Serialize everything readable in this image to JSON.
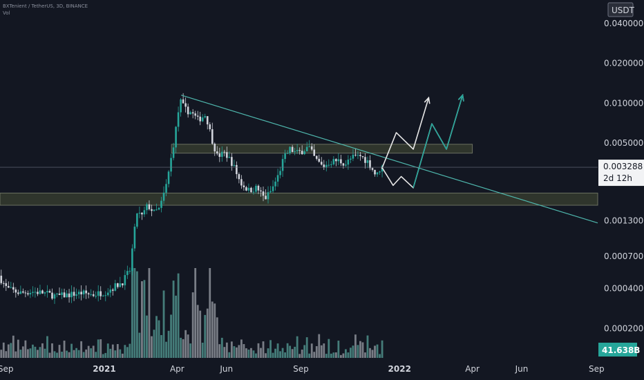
{
  "header": {
    "symbol_line": "BXTenient / TetherUS, 3D, BINANCE",
    "vol_label": "Vol"
  },
  "currency_badge": "USDT",
  "colors": {
    "background": "#131722",
    "up": "#26a69a",
    "down": "#d1d4dc",
    "vol_up": "#4f8f89",
    "vol_down": "#8c8f98",
    "trendline": "#4fb8ae",
    "zone": "#3a4030",
    "projection_white": "#e6e6e6",
    "projection_teal": "#26a69a"
  },
  "chart_data": {
    "type": "candlestick",
    "y_scale": "log",
    "ylim": [
      0.00012,
      0.06
    ],
    "y_ticks": [
      "0.040000",
      "0.020000",
      "0.010000",
      "0.005000",
      "0.001300",
      "0.000700",
      "0.000400",
      "0.000200"
    ],
    "y_tick_values": [
      0.04,
      0.02,
      0.01,
      0.005,
      0.0013,
      0.0007,
      0.0004,
      0.0002
    ],
    "x_ticks": [
      {
        "label": "Sep",
        "bold": false,
        "date": "2020-09-01"
      },
      {
        "label": "2021",
        "bold": true,
        "date": "2021-01-01"
      },
      {
        "label": "Apr",
        "bold": false,
        "date": "2021-04-01"
      },
      {
        "label": "Jun",
        "bold": false,
        "date": "2021-06-01"
      },
      {
        "label": "Sep",
        "bold": false,
        "date": "2021-09-01"
      },
      {
        "label": "2022",
        "bold": true,
        "date": "2022-01-01"
      },
      {
        "label": "Apr",
        "bold": false,
        "date": "2022-04-01"
      },
      {
        "label": "Jun",
        "bold": false,
        "date": "2022-06-01"
      },
      {
        "label": "Sep",
        "bold": false,
        "date": "2022-09-01"
      }
    ],
    "xlim": [
      "2020-08-25",
      "2022-09-03"
    ],
    "last_price": "0.003288",
    "countdown": "2d 12h",
    "volume_badge": "41.638B",
    "price_path": [
      [
        "2020-08-25",
        0.0005
      ],
      [
        "2020-09-04",
        0.0004
      ],
      [
        "2020-09-20",
        0.00037
      ],
      [
        "2020-10-05",
        0.00038
      ],
      [
        "2020-10-20",
        0.00037
      ],
      [
        "2020-11-05",
        0.00035
      ],
      [
        "2020-11-20",
        0.00036
      ],
      [
        "2020-12-05",
        0.00037
      ],
      [
        "2020-12-20",
        0.00036
      ],
      [
        "2021-01-05",
        0.00038
      ],
      [
        "2021-01-25",
        0.00045
      ],
      [
        "2021-02-03",
        0.00055
      ],
      [
        "2021-02-08",
        0.001
      ],
      [
        "2021-02-12",
        0.0015
      ],
      [
        "2021-02-18",
        0.0014
      ],
      [
        "2021-02-25",
        0.0017
      ],
      [
        "2021-03-05",
        0.0015
      ],
      [
        "2021-03-12",
        0.0016
      ],
      [
        "2021-03-20",
        0.0024
      ],
      [
        "2021-03-25",
        0.0035
      ],
      [
        "2021-03-31",
        0.0058
      ],
      [
        "2021-04-06",
        0.0105
      ],
      [
        "2021-04-12",
        0.009
      ],
      [
        "2021-04-20",
        0.0085
      ],
      [
        "2021-04-28",
        0.0075
      ],
      [
        "2021-05-08",
        0.0082
      ],
      [
        "2021-05-15",
        0.0055
      ],
      [
        "2021-05-22",
        0.004
      ],
      [
        "2021-06-01",
        0.0042
      ],
      [
        "2021-06-10",
        0.0035
      ],
      [
        "2021-06-20",
        0.0025
      ],
      [
        "2021-06-30",
        0.0022
      ],
      [
        "2021-07-10",
        0.0023
      ],
      [
        "2021-07-20",
        0.0019
      ],
      [
        "2021-07-28",
        0.0022
      ],
      [
        "2021-08-05",
        0.0028
      ],
      [
        "2021-08-12",
        0.0038
      ],
      [
        "2021-08-20",
        0.0045
      ],
      [
        "2021-08-28",
        0.0042
      ],
      [
        "2021-09-05",
        0.0044
      ],
      [
        "2021-09-12",
        0.0047
      ],
      [
        "2021-09-20",
        0.0038
      ],
      [
        "2021-09-30",
        0.0033
      ],
      [
        "2021-10-08",
        0.0036
      ],
      [
        "2021-10-18",
        0.0037
      ],
      [
        "2021-10-28",
        0.0035
      ],
      [
        "2021-11-05",
        0.0039
      ],
      [
        "2021-11-15",
        0.004
      ],
      [
        "2021-11-25",
        0.0036
      ],
      [
        "2021-12-05",
        0.0028
      ],
      [
        "2021-12-10",
        0.0033
      ]
    ],
    "trendline": {
      "from": [
        "2021-04-06",
        0.0115
      ],
      "to": [
        "2022-09-03",
        0.00125
      ]
    },
    "zones": [
      {
        "from": "2021-03-25",
        "to": "2022-04-01",
        "y_low": 0.0042,
        "y_high": 0.0049
      },
      {
        "from": "2020-08-25",
        "to": "2022-09-03",
        "y_low": 0.0017,
        "y_high": 0.0021
      }
    ],
    "projections": [
      {
        "color": "white",
        "points": [
          [
            "2021-12-10",
            0.0032
          ],
          [
            "2021-12-28",
            0.006
          ],
          [
            "2022-01-18",
            0.0045
          ],
          [
            "2022-02-06",
            0.011
          ]
        ]
      },
      {
        "color": "white",
        "points": [
          [
            "2021-12-10",
            0.0033
          ],
          [
            "2021-12-24",
            0.0024
          ],
          [
            "2022-01-03",
            0.0028
          ],
          [
            "2022-01-18",
            0.0023
          ],
          [
            "2022-02-10",
            0.007
          ],
          [
            "2022-02-28",
            0.0045
          ],
          [
            "2022-03-20",
            0.0115
          ]
        ]
      },
      {
        "color": "teal",
        "points": [
          [
            "2022-01-18",
            0.0023
          ],
          [
            "2022-02-10",
            0.007
          ],
          [
            "2022-02-28",
            0.0045
          ],
          [
            "2022-03-20",
            0.0115
          ]
        ]
      }
    ]
  }
}
